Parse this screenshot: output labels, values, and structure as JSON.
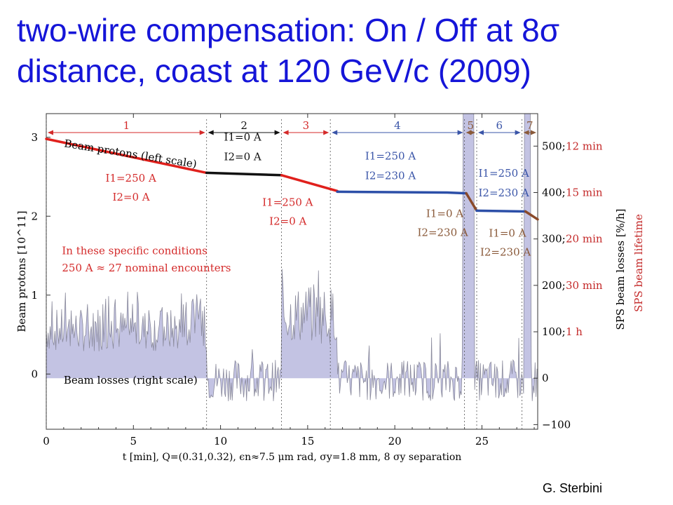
{
  "slide": {
    "title_line1": "two-wire compensation: On / Off at 8σ",
    "title_line2": "distance, coast at 120 GeV/c (2009)",
    "author": "G. Sterbini"
  },
  "chart_data": {
    "type": "line",
    "xlabel": "t [min], Q=(0.31,0.32), ϵn≈7.5 μm rad, σy=1.8 mm, 8 σy separation",
    "ylabel_left": "Beam protons [10^11]",
    "ylabel_right_1": "SPS beam losses [%/h]",
    "ylabel_right_2": "SPS beam lifetime",
    "xlim": [
      0,
      28.2
    ],
    "ylim_left": [
      -0.7,
      3.3
    ],
    "ylim_right": [
      -110,
      570
    ],
    "x_ticks": [
      "0",
      "5",
      "10",
      "15",
      "20",
      "25"
    ],
    "left_ticks": [
      "0",
      "1",
      "2",
      "3"
    ],
    "right_ticks": [
      {
        "value": -100,
        "label": "−100",
        "lifetime": ""
      },
      {
        "value": 0,
        "label": "0",
        "lifetime": ""
      },
      {
        "value": 100,
        "label": "100;",
        "lifetime": "1 h"
      },
      {
        "value": 200,
        "label": "200;",
        "lifetime": "30 min"
      },
      {
        "value": 300,
        "label": "300;",
        "lifetime": "20 min"
      },
      {
        "value": 400,
        "label": "400;",
        "lifetime": "15 min"
      },
      {
        "value": 500,
        "label": "500;",
        "lifetime": "12 min"
      }
    ],
    "phases": [
      {
        "label": "1",
        "x0": 0,
        "x1": 9.2,
        "color": "#d42a2a"
      },
      {
        "label": "2",
        "x0": 9.2,
        "x1": 13.5,
        "color": "#111111"
      },
      {
        "label": "3",
        "x0": 13.5,
        "x1": 16.3,
        "color": "#d42a2a"
      },
      {
        "label": "4",
        "x0": 16.3,
        "x1": 24.0,
        "color": "#3a55a8"
      },
      {
        "label": "5",
        "x0": 24.0,
        "x1": 24.7,
        "color": "#8a5a3a"
      },
      {
        "label": "6",
        "x0": 24.7,
        "x1": 27.3,
        "color": "#3a55a8"
      },
      {
        "label": "7",
        "x0": 27.3,
        "x1": 28.2,
        "color": "#8a5a3a"
      }
    ],
    "series": [
      {
        "name": "Beam protons (left scale)",
        "segments": [
          {
            "color": "#e0201c",
            "points": [
              [
                0,
                2.98
              ],
              [
                9.2,
                2.55
              ]
            ]
          },
          {
            "color": "#111111",
            "points": [
              [
                9.2,
                2.55
              ],
              [
                13.5,
                2.52
              ]
            ]
          },
          {
            "color": "#e0201c",
            "points": [
              [
                13.5,
                2.52
              ],
              [
                16.7,
                2.32
              ]
            ]
          },
          {
            "color": "#2c4fa8",
            "points": [
              [
                16.7,
                2.31
              ],
              [
                23.0,
                2.3
              ],
              [
                24.1,
                2.29
              ]
            ]
          },
          {
            "color": "#8a4a2a",
            "points": [
              [
                24.1,
                2.29
              ],
              [
                24.7,
                2.07
              ]
            ]
          },
          {
            "color": "#2c4fa8",
            "points": [
              [
                24.7,
                2.07
              ],
              [
                27.5,
                2.06
              ]
            ]
          },
          {
            "color": "#8a4a2a",
            "points": [
              [
                27.5,
                2.06
              ],
              [
                28.2,
                1.96
              ]
            ]
          }
        ]
      },
      {
        "name": "Beam losses (right scale)",
        "envelope": [
          {
            "x0": 0,
            "x1": 9.2,
            "level": 125
          },
          {
            "x0": 9.2,
            "x1": 13.5,
            "level": 0
          },
          {
            "x0": 13.5,
            "x1": 16.7,
            "level": 165
          },
          {
            "x0": 16.7,
            "x1": 23.9,
            "level": 0
          },
          {
            "x0": 23.9,
            "x1": 24.55,
            "level": 570
          },
          {
            "x0": 24.55,
            "x1": 27.4,
            "level": 0
          },
          {
            "x0": 27.4,
            "x1": 27.8,
            "level": 570
          },
          {
            "x0": 27.8,
            "x1": 28.2,
            "level": 0
          }
        ]
      }
    ],
    "annotations": [
      {
        "text": "Beam protons (left scale)",
        "x": 1.0,
        "y": 2.88,
        "rotate": 9,
        "color": "#000000"
      },
      {
        "text": "Beam losses (right scale)",
        "x": 1.0,
        "y": -0.12,
        "rotate": 0,
        "color": "#000000"
      },
      {
        "text": "I1=250 A",
        "x": 3.4,
        "y": 2.44,
        "rotate": 0,
        "color": "#d42a2a"
      },
      {
        "text": "I2=0 A",
        "x": 3.8,
        "y": 2.2,
        "rotate": 0,
        "color": "#d42a2a"
      },
      {
        "text": "I1=0 A",
        "x": 10.2,
        "y": 2.96,
        "rotate": 0,
        "color": "#111111"
      },
      {
        "text": "I2=0 A",
        "x": 10.2,
        "y": 2.71,
        "rotate": 0,
        "color": "#111111"
      },
      {
        "text": "I1=250 A",
        "x": 12.4,
        "y": 2.13,
        "rotate": 0,
        "color": "#d42a2a"
      },
      {
        "text": "I2=0 A",
        "x": 12.8,
        "y": 1.89,
        "rotate": 0,
        "color": "#d42a2a"
      },
      {
        "text": "I1=250 A",
        "x": 18.3,
        "y": 2.72,
        "rotate": 0,
        "color": "#3a55a8"
      },
      {
        "text": "I2=230 A",
        "x": 18.3,
        "y": 2.47,
        "rotate": 0,
        "color": "#3a55a8"
      },
      {
        "text": "I1=0 A",
        "x": 21.8,
        "y": 1.99,
        "rotate": 0,
        "color": "#8a5a3a"
      },
      {
        "text": "I2=230 A",
        "x": 21.3,
        "y": 1.75,
        "rotate": 0,
        "color": "#8a5a3a"
      },
      {
        "text": "I1=250 A",
        "x": 24.8,
        "y": 2.5,
        "rotate": 0,
        "color": "#3a55a8"
      },
      {
        "text": "I2=230 A",
        "x": 24.8,
        "y": 2.25,
        "rotate": 0,
        "color": "#3a55a8"
      },
      {
        "text": "I1=0 A",
        "x": 25.4,
        "y": 1.74,
        "rotate": 0,
        "color": "#8a5a3a"
      },
      {
        "text": "I2=230 A",
        "x": 24.9,
        "y": 1.5,
        "rotate": 0,
        "color": "#8a5a3a"
      },
      {
        "text": "In these specific conditions",
        "x": 0.9,
        "y": 1.52,
        "rotate": 0,
        "color": "#d42a2a"
      },
      {
        "text": "250 A ≈ 27 nominal encounters",
        "x": 0.9,
        "y": 1.3,
        "rotate": 0,
        "color": "#d42a2a"
      }
    ]
  }
}
